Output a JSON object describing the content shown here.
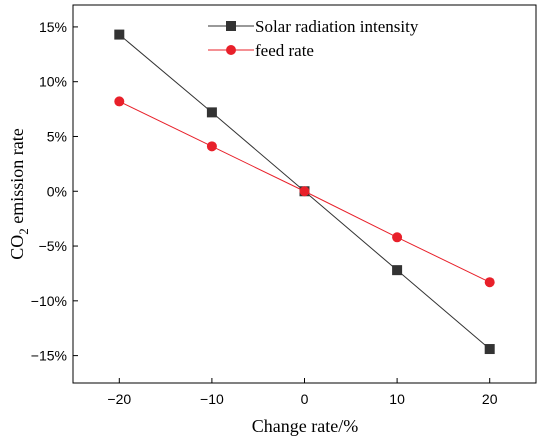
{
  "chart_data": {
    "type": "line",
    "x": [
      -20,
      -10,
      0,
      10,
      20
    ],
    "xlim": [
      -25,
      25
    ],
    "ylim": [
      -17.5,
      17
    ],
    "x_ticks": [
      -20,
      -10,
      0,
      10,
      20
    ],
    "x_tick_labels": [
      "−20",
      "−10",
      "0",
      "10",
      "20"
    ],
    "y_ticks": [
      15,
      10,
      5,
      0,
      -5,
      -10,
      -15
    ],
    "y_tick_labels": [
      "15%",
      "10%",
      "5%",
      "0%",
      "−5%",
      "−10%",
      "−15%"
    ],
    "xlabel": "Change rate/%",
    "ylabel": {
      "prefix": "CO",
      "subscript": "2",
      "suffix": " emission rate"
    },
    "grid": false,
    "legend_position": "top",
    "series": [
      {
        "name": "Solar radiation intensity",
        "color": "#333333",
        "marker": "square",
        "values": [
          14.3,
          7.2,
          0,
          -7.2,
          -14.4
        ]
      },
      {
        "name": "feed rate",
        "color": "#e8202a",
        "marker": "circle",
        "values": [
          8.2,
          4.1,
          0,
          -4.2,
          -8.3
        ]
      }
    ]
  }
}
